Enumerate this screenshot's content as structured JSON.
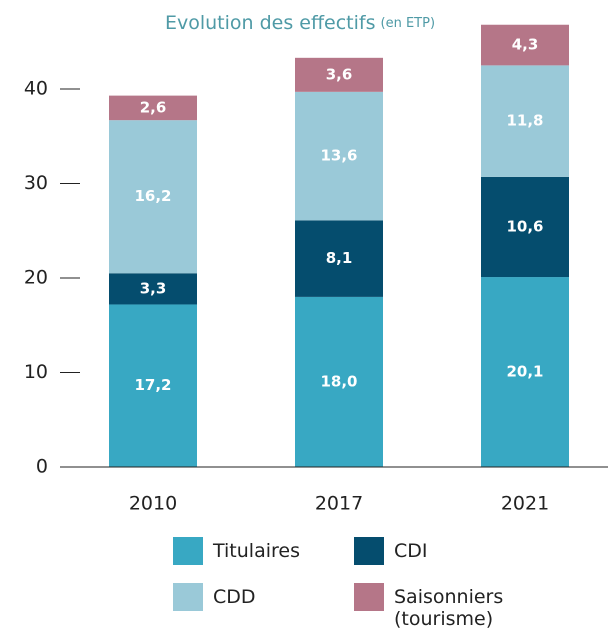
{
  "chart_data": {
    "type": "stacked_bar",
    "title": "Evolution des effectifs",
    "subtitle": "(en ETP)",
    "categories": [
      "2010",
      "2017",
      "2021"
    ],
    "series": [
      {
        "name": "Titulaires",
        "color": "#38a8c3",
        "values": [
          17.2,
          18.0,
          20.1
        ],
        "value_labels": [
          "17,2",
          "18,0",
          "20,1"
        ]
      },
      {
        "name": "CDI",
        "color": "#054d6e",
        "values": [
          3.3,
          8.1,
          10.6
        ],
        "value_labels": [
          "3,3",
          "8,1",
          "10,6"
        ]
      },
      {
        "name": "CDD",
        "color": "#9ac9d8",
        "values": [
          16.2,
          13.6,
          11.8
        ],
        "value_labels": [
          "16,2",
          "13,6",
          "11,8"
        ]
      },
      {
        "name": "Saisonniers (tourisme)",
        "color": "#b57688",
        "values": [
          2.6,
          3.6,
          4.3
        ],
        "value_labels": [
          "2,6",
          "3,6",
          "4,3"
        ]
      }
    ],
    "ylim": [
      0,
      48
    ],
    "yticks": [
      0,
      10,
      20,
      30,
      40
    ],
    "grid": false
  }
}
